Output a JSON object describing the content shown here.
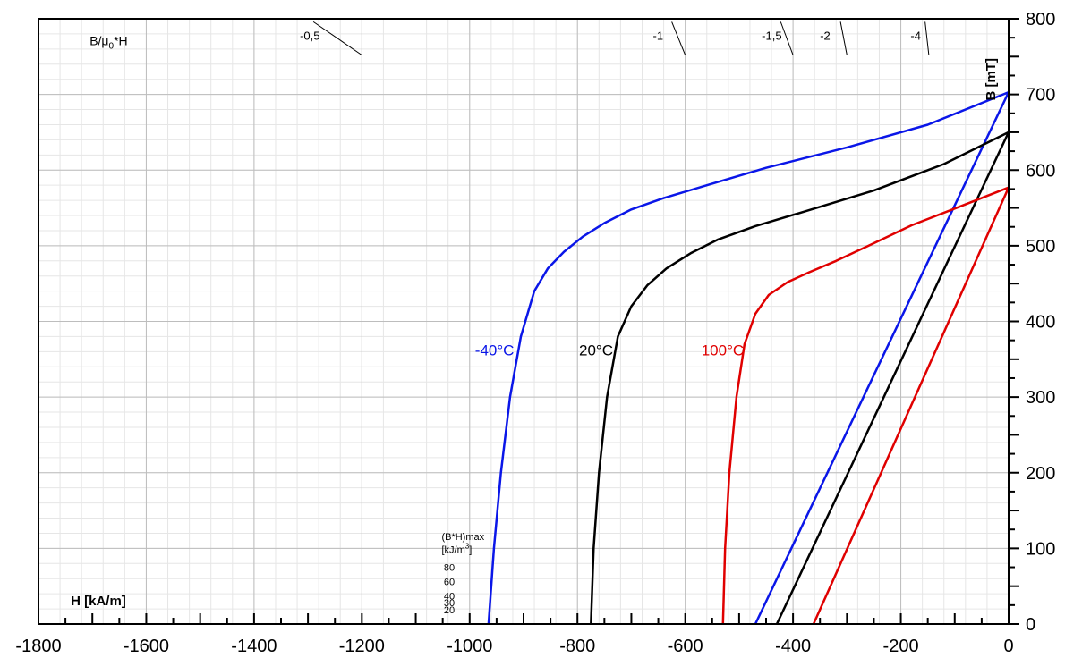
{
  "chart_data": {
    "type": "line",
    "title": "",
    "xlabel": "H [kA/m]",
    "ylabel": "B [mT]",
    "xlim": [
      -1800,
      0
    ],
    "ylim": [
      0,
      800
    ],
    "x_ticks": [
      -1800,
      -1600,
      -1400,
      -1200,
      -1000,
      -800,
      -600,
      -400,
      -200,
      0
    ],
    "y_ticks": [
      0,
      100,
      200,
      300,
      400,
      500,
      600,
      700,
      800
    ],
    "grid": true,
    "permeance_title": "B/μ0*H",
    "permeance_title_parts": {
      "main": "B/μ",
      "sub": "0",
      "tail": "*H"
    },
    "permeance_lines": [
      {
        "label": "-0,5",
        "slope": -0.5
      },
      {
        "label": "-1",
        "slope": -1
      },
      {
        "label": "-1,5",
        "slope": -1.5
      },
      {
        "label": "-2",
        "slope": -2
      },
      {
        "label": "-4",
        "slope": -4
      }
    ],
    "energy_title_lines": [
      "(B*H)max",
      "[kJ/m³]"
    ],
    "energy_title_parts": {
      "line1": "(B*H)max",
      "line2_main": "[kJ/m",
      "line2_sup": "3",
      "line2_tail": "]"
    },
    "energy_products": [
      {
        "label": "20",
        "value": 20
      },
      {
        "label": "30",
        "value": 30
      },
      {
        "label": "40",
        "value": 40
      },
      {
        "label": "60",
        "value": 60
      },
      {
        "label": "80",
        "value": 80
      }
    ],
    "series": [
      {
        "name": "-40°C",
        "color": "#0a16e8",
        "intrinsic": {
          "x": [
            -965,
            -955,
            -942,
            -925,
            -905,
            -880,
            -855,
            -825,
            -790,
            -750,
            -700,
            -640,
            -560,
            -450,
            -300,
            -150,
            0
          ],
          "y": [
            0,
            100,
            200,
            300,
            380,
            440,
            470,
            492,
            512,
            530,
            548,
            563,
            580,
            603,
            630,
            660,
            703
          ]
        },
        "normal": {
          "x": [
            -470,
            0
          ],
          "y": [
            0,
            703
          ]
        }
      },
      {
        "name": "20°C",
        "color": "#000000",
        "intrinsic": {
          "x": [
            -775,
            -770,
            -760,
            -745,
            -725,
            -700,
            -670,
            -635,
            -590,
            -540,
            -470,
            -380,
            -250,
            -120,
            0
          ],
          "y": [
            0,
            100,
            200,
            300,
            380,
            420,
            448,
            470,
            490,
            508,
            526,
            545,
            573,
            608,
            650
          ]
        },
        "normal": {
          "x": [
            -430,
            0
          ],
          "y": [
            0,
            650
          ]
        }
      },
      {
        "name": "100°C",
        "color": "#e00000",
        "intrinsic": {
          "x": [
            -530,
            -526,
            -518,
            -505,
            -490,
            -470,
            -445,
            -410,
            -370,
            -320,
            -260,
            -180,
            -90,
            0
          ],
          "y": [
            0,
            100,
            200,
            300,
            370,
            410,
            435,
            452,
            465,
            480,
            500,
            527,
            552,
            577
          ]
        },
        "normal": {
          "x": [
            -362,
            0
          ],
          "y": [
            0,
            577
          ]
        }
      }
    ]
  }
}
